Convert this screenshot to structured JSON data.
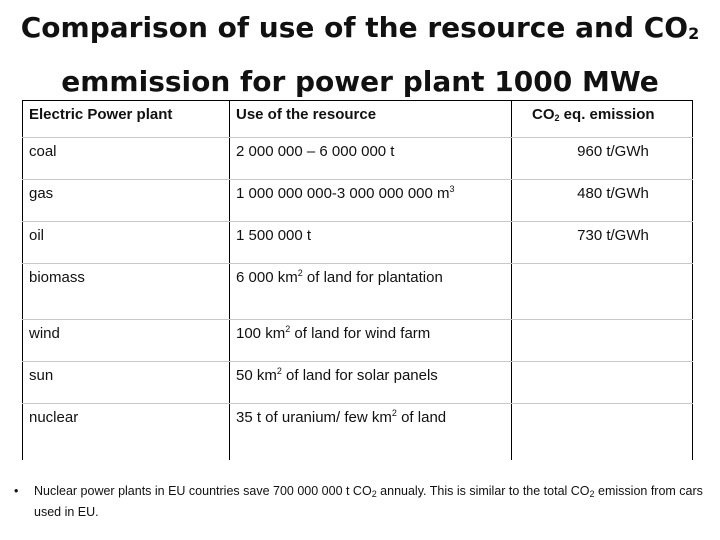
{
  "title": {
    "line1_pre": "Comparison of use of the resource and CO",
    "line1_sub": "2",
    "line2": "emmission for power plant 1000 MWe"
  },
  "table": {
    "headers": {
      "plant": "Electric Power plant",
      "resource": "Use of the resource",
      "emission_pre": "CO",
      "emission_sub": "2",
      "emission_post": " eq. emission"
    },
    "rows": [
      {
        "plant": "coal",
        "res_pre": "2 000 000 – 6 000 000 t",
        "res_sup": "",
        "res_post": "",
        "emission": "960 t/GWh"
      },
      {
        "plant": "gas",
        "res_pre": "1 000 000 000-3 000 000 000 m",
        "res_sup": "3",
        "res_post": "",
        "emission": "480 t/GWh"
      },
      {
        "plant": "oil",
        "res_pre": "1 500 000 t",
        "res_sup": "",
        "res_post": "",
        "emission": "730 t/GWh"
      },
      {
        "plant": "biomass",
        "res_pre": "6 000 km",
        "res_sup": "2",
        "res_post": " of land for plantation",
        "emission": ""
      },
      {
        "plant": "wind",
        "res_pre": "100 km",
        "res_sup": "2",
        "res_post": " of land for wind farm",
        "emission": ""
      },
      {
        "plant": "sun",
        "res_pre": "50 km",
        "res_sup": "2",
        "res_post": " of land for solar panels",
        "emission": ""
      },
      {
        "plant": "nuclear",
        "res_pre": "35 t  of uranium/ few km",
        "res_sup": "2",
        "res_post": " of land",
        "emission": ""
      }
    ]
  },
  "footnote": {
    "bullet": "•",
    "p1": "Nuclear power plants in EU countries save 700 000 000 t CO",
    "s1": "2",
    "p2": " annualy. This is similar to the total CO",
    "s2": "2",
    "p3": " emission from cars used in EU."
  }
}
